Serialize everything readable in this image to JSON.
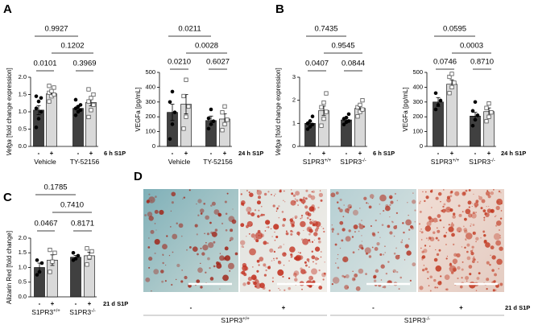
{
  "chart_data": [
    {
      "type": "bar",
      "panel": "A",
      "ylabel_parts": [
        {
          "text": "Vefga",
          "italic": true
        },
        {
          "text": " [fold change expression]"
        }
      ],
      "groups": [
        {
          "label": "Vehicle"
        },
        {
          "label": "TY-52156"
        }
      ],
      "treatment_label": "6 h S1P",
      "ylim": [
        0,
        2
      ],
      "yticks": [
        {
          "value": 0,
          "label": "0.0"
        },
        0.5,
        {
          "value": 1,
          "label": "1.0"
        },
        1.5,
        {
          "value": 2,
          "label": "2.0"
        }
      ],
      "series": [
        {
          "name": "-",
          "color": "#404040",
          "marker": "circle",
          "values": [
            1.05,
            1.1
          ],
          "errors": [
            0.13,
            0.07
          ],
          "points": [
            [
              0.55,
              0.8,
              1.0,
              1.1,
              1.3,
              1.4,
              1.45
            ],
            [
              0.9,
              1.0,
              1.05,
              1.1,
              1.15,
              1.2,
              1.35
            ]
          ]
        },
        {
          "name": "+",
          "color": "#d9d9d9",
          "marker": "square",
          "values": [
            1.52,
            1.27
          ],
          "errors": [
            0.07,
            0.1
          ],
          "points": [
            [
              1.3,
              1.45,
              1.5,
              1.55,
              1.6,
              1.7,
              1.75
            ],
            [
              0.85,
              1.05,
              1.2,
              1.3,
              1.4,
              1.5,
              1.65
            ]
          ]
        }
      ],
      "p_within": [
        "0.0101",
        "0.3969"
      ],
      "p_between_plus": "0.1202",
      "p_between_minus": "0.9927"
    },
    {
      "type": "bar",
      "ylabel_parts": [
        {
          "text": "VEGFa [pg/mL]"
        }
      ],
      "groups": [
        {
          "label": "Vehicle"
        },
        {
          "label": "TY-52156"
        }
      ],
      "treatment_label": "24 h S1P",
      "ylim": [
        0,
        500
      ],
      "yticks": [
        0,
        100,
        200,
        300,
        400,
        500
      ],
      "series": [
        {
          "name": "-",
          "color": "#404040",
          "marker": "circle",
          "values": [
            230,
            175
          ],
          "errors": [
            55,
            30
          ],
          "points": [
            [
              50,
              150,
              230,
              300,
              370
            ],
            [
              120,
              150,
              170,
              190,
              250
            ]
          ]
        },
        {
          "name": "+",
          "color": "#d9d9d9",
          "marker": "square",
          "values": [
            285,
            185
          ],
          "errors": [
            65,
            35
          ],
          "points": [
            [
              120,
              200,
              270,
              340,
              450
            ],
            [
              110,
              150,
              180,
              230,
              270
            ]
          ]
        }
      ],
      "p_within": [
        "0.0210",
        "0.6027"
      ],
      "p_between_plus": "0.0028",
      "p_between_minus": "0.0211"
    },
    {
      "type": "bar",
      "panel": "B",
      "ylabel_parts": [
        {
          "text": "Vefga",
          "italic": true
        },
        {
          "text": " [fold change expression]"
        }
      ],
      "groups": [
        {
          "label": "S1PR3",
          "sup": "+/+"
        },
        {
          "label": "S1PR3",
          "sup": "-/-"
        }
      ],
      "treatment_label": "6 h S1P",
      "ylim": [
        0,
        3
      ],
      "yticks": [
        0,
        1,
        2,
        3
      ],
      "series": [
        {
          "name": "-",
          "color": "#404040",
          "marker": "circle",
          "values": [
            1.0,
            1.15
          ],
          "errors": [
            0.1,
            0.08
          ],
          "points": [
            [
              0.75,
              0.85,
              0.95,
              1.0,
              1.1,
              1.3
            ],
            [
              0.95,
              1.05,
              1.1,
              1.2,
              1.25,
              1.4
            ]
          ]
        },
        {
          "name": "+",
          "color": "#d9d9d9",
          "marker": "square",
          "values": [
            1.55,
            1.65
          ],
          "errors": [
            0.2,
            0.1
          ],
          "points": [
            [
              0.9,
              1.2,
              1.5,
              1.7,
              1.9,
              2.3
            ],
            [
              1.3,
              1.5,
              1.6,
              1.7,
              1.8,
              2.0
            ]
          ]
        }
      ],
      "p_within": [
        "0.0407",
        "0.0844"
      ],
      "p_between_plus": "0.9545",
      "p_between_minus": "0.7435"
    },
    {
      "type": "bar",
      "ylabel_parts": [
        {
          "text": "VEGFa [pg/mL]"
        }
      ],
      "groups": [
        {
          "label": "S1PR3",
          "sup": "+/+"
        },
        {
          "label": "S1PR3",
          "sup": "-/-"
        }
      ],
      "treatment_label": "24 h S1P",
      "ylim": [
        0,
        500
      ],
      "yticks": [
        0,
        100,
        200,
        300,
        400,
        500
      ],
      "series": [
        {
          "name": "-",
          "color": "#404040",
          "marker": "circle",
          "values": [
            300,
            205
          ],
          "errors": [
            30,
            25
          ],
          "points": [
            [
              250,
              280,
              310,
              360
            ],
            [
              140,
              180,
              210,
              240,
              300
            ]
          ]
        },
        {
          "name": "+",
          "color": "#d9d9d9",
          "marker": "square",
          "values": [
            420,
            235
          ],
          "errors": [
            30,
            25
          ],
          "points": [
            [
              360,
              400,
              430,
              470,
              490
            ],
            [
              170,
              200,
              230,
              260,
              290
            ]
          ]
        }
      ],
      "p_within": [
        "0.0746",
        "0.8710"
      ],
      "p_between_plus": "0.0003",
      "p_between_minus": "0.0595"
    },
    {
      "type": "bar",
      "panel": "C",
      "ylabel_parts": [
        {
          "text": "Alizarin Red [fold change]"
        }
      ],
      "groups": [
        {
          "label": "S1PR3",
          "sup": "+/+"
        },
        {
          "label": "S1PR3",
          "sup": "-/-"
        }
      ],
      "treatment_label": "21 d S1P",
      "ylim": [
        0,
        2
      ],
      "yticks": [
        {
          "value": 0,
          "label": "0.0"
        },
        0.5,
        {
          "value": 1,
          "label": "1.0"
        },
        1.5,
        {
          "value": 2,
          "label": "2.0"
        }
      ],
      "series": [
        {
          "name": "-",
          "color": "#404040",
          "marker": "circle",
          "values": [
            1.0,
            1.35
          ],
          "errors": [
            0.15,
            0.06
          ],
          "points": [
            [
              0.75,
              0.85,
              1.15,
              1.25
            ],
            [
              1.25,
              1.3,
              1.4,
              1.5
            ]
          ]
        },
        {
          "name": "+",
          "color": "#d9d9d9",
          "marker": "square",
          "values": [
            1.25,
            1.4
          ],
          "errors": [
            0.18,
            0.12
          ],
          "points": [
            [
              0.85,
              1.2,
              1.5,
              1.6
            ],
            [
              1.1,
              1.35,
              1.55,
              1.65
            ]
          ]
        }
      ],
      "p_within": [
        "0.0467",
        "0.8171"
      ],
      "p_between_plus": "0.7410",
      "p_between_minus": "0.1785"
    }
  ],
  "image_panel": {
    "panel": "D",
    "signs": [
      "-",
      "+",
      "-",
      "+"
    ],
    "treatment_label": "21 d S1P",
    "groups": [
      {
        "label": "S1PR3",
        "sup": "+/+"
      },
      {
        "label": "S1PR3",
        "sup": "-/-"
      }
    ]
  }
}
